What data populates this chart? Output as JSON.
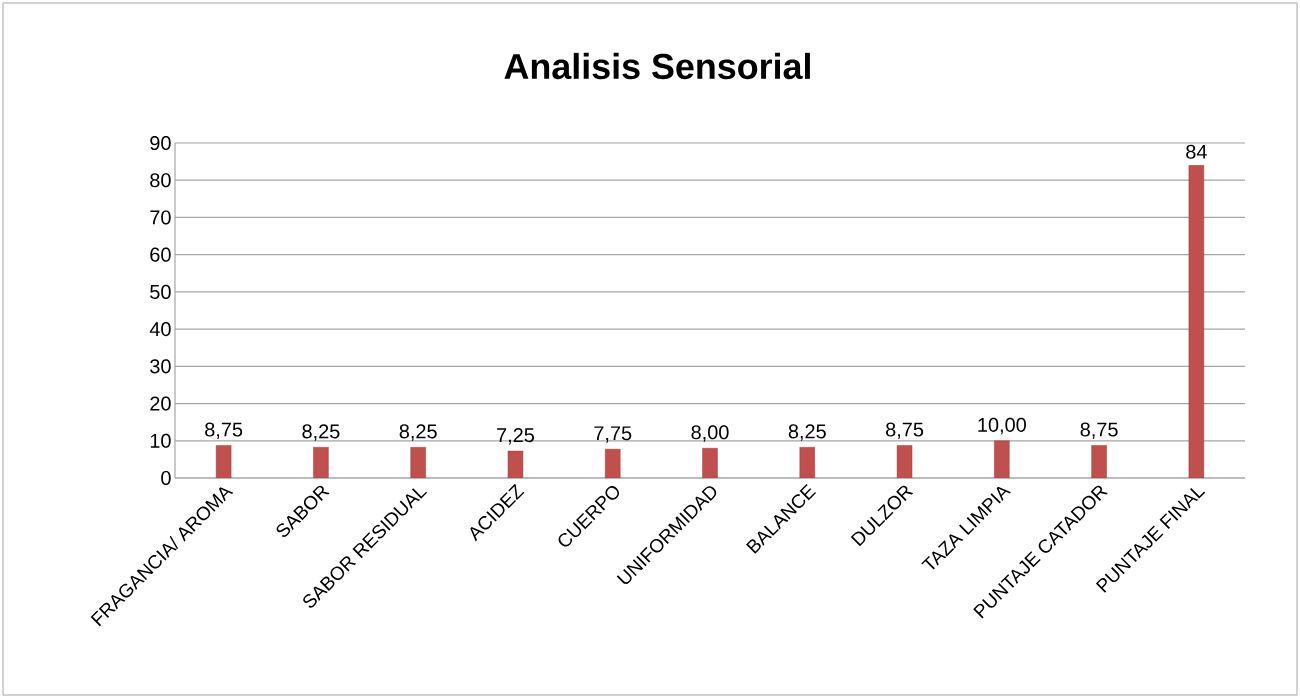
{
  "chart_data": {
    "type": "bar",
    "title": "Analisis Sensorial",
    "categories": [
      "FRAGANCIA/ AROMA",
      "SABOR",
      "SABOR RESIDUAL",
      "ACIDEZ",
      "CUERPO",
      "UNIFORMIDAD",
      "BALANCE",
      "DULZOR",
      "TAZA LIMPIA",
      "PUNTAJE CATADOR",
      "PUNTAJE FINAL"
    ],
    "values": [
      8.75,
      8.25,
      8.25,
      7.25,
      7.75,
      8.0,
      8.25,
      8.75,
      10.0,
      8.75,
      84
    ],
    "value_labels": [
      "8,75",
      "8,25",
      "8,25",
      "7,25",
      "7,75",
      "8,00",
      "8,25",
      "8,75",
      "10,00",
      "8,75",
      "84"
    ],
    "color": "#c0504d",
    "ylim": [
      0,
      90
    ],
    "yticks": [
      0,
      10,
      20,
      30,
      40,
      50,
      60,
      70,
      80,
      90
    ],
    "grid": "y"
  }
}
